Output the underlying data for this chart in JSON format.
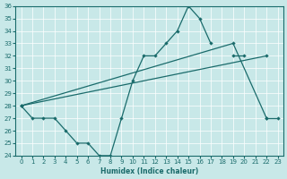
{
  "x": [
    0,
    1,
    2,
    3,
    4,
    5,
    6,
    7,
    8,
    9,
    10,
    11,
    12,
    13,
    14,
    15,
    16,
    17,
    18,
    19,
    20,
    21,
    22,
    23
  ],
  "line1": [
    28,
    27,
    27,
    27,
    26,
    25,
    25,
    24,
    24,
    27,
    30,
    32,
    32,
    33,
    34,
    36,
    35,
    33,
    null,
    32,
    32,
    null,
    27,
    27
  ],
  "line2": [
    28,
    null,
    null,
    null,
    null,
    null,
    null,
    null,
    null,
    null,
    null,
    null,
    null,
    null,
    null,
    null,
    null,
    null,
    null,
    33,
    null,
    null,
    27,
    null
  ],
  "line3": [
    28,
    null,
    null,
    null,
    null,
    null,
    null,
    null,
    null,
    null,
    null,
    null,
    null,
    null,
    null,
    null,
    null,
    null,
    null,
    null,
    null,
    null,
    32,
    null
  ],
  "background_color": "#c8e8e8",
  "line_color": "#1a6b6b",
  "xlabel": "Humidex (Indice chaleur)",
  "ylim": [
    24,
    36
  ],
  "xlim": [
    -0.5,
    23.5
  ],
  "yticks": [
    24,
    25,
    26,
    27,
    28,
    29,
    30,
    31,
    32,
    33,
    34,
    35,
    36
  ],
  "xticks": [
    0,
    1,
    2,
    3,
    4,
    5,
    6,
    7,
    8,
    9,
    10,
    11,
    12,
    13,
    14,
    15,
    16,
    17,
    18,
    19,
    20,
    21,
    22,
    23
  ]
}
